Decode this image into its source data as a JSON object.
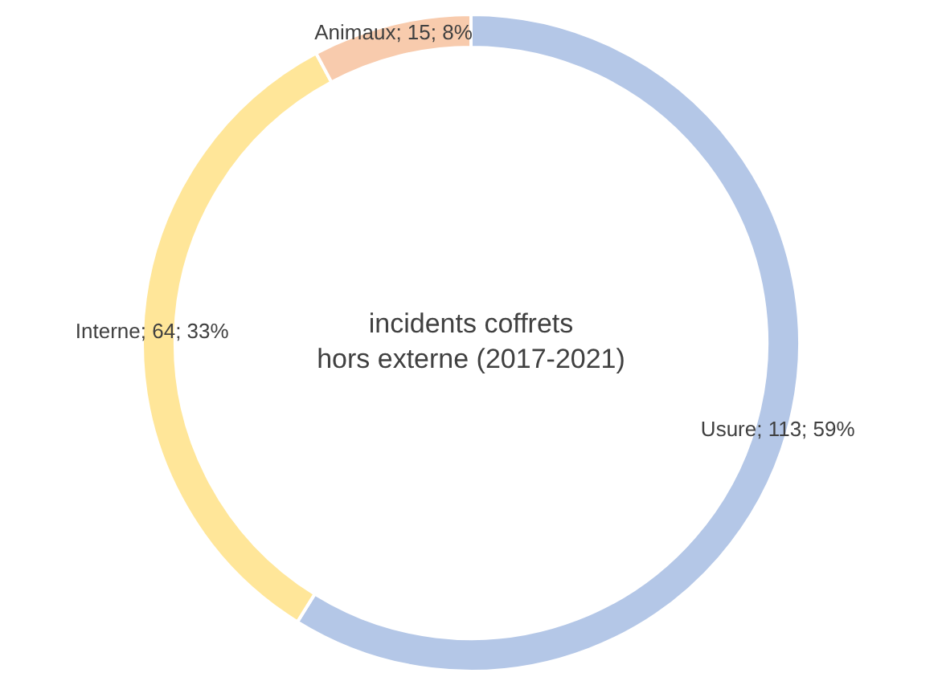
{
  "chart_data": {
    "type": "donut",
    "title": "incidents coffrets\nhors externe (2017-2021)",
    "categories": [
      "Usure",
      "Interne",
      "Animaux"
    ],
    "values": [
      113,
      64,
      15
    ],
    "value_labels": [
      "113; 59%",
      "64; 33%",
      "15; 8%"
    ],
    "colors": [
      "#b4c7e7",
      "#ffe699",
      "#f8cbad"
    ],
    "legend": false
  }
}
